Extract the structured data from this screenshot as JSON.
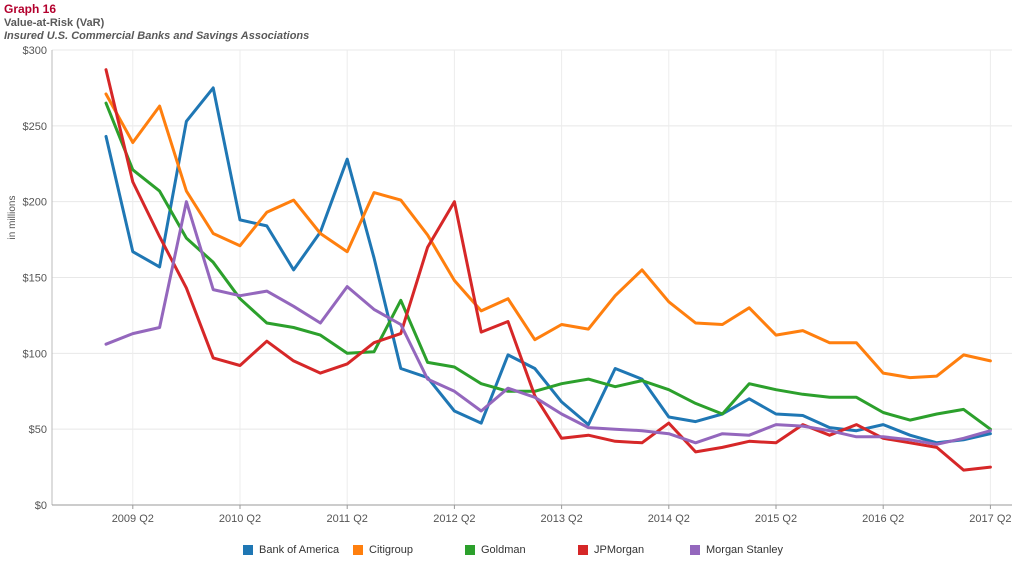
{
  "header": {
    "title": "Graph 16",
    "subtitle": "Value-at-Risk (VaR)",
    "subtitle2": "Insured U.S. Commercial Banks and Savings Associations"
  },
  "chart_data": {
    "type": "line",
    "ylabel": "in millions",
    "ylim": [
      0,
      300
    ],
    "yticks": [
      0,
      50,
      100,
      150,
      200,
      250,
      300
    ],
    "ytick_labels": [
      "$0",
      "$50",
      "$100",
      "$150",
      "$200",
      "$250",
      "$300"
    ],
    "xlabels": [
      "2009 Q2",
      "2010 Q2",
      "2011 Q2",
      "2012 Q2",
      "2013 Q2",
      "2014 Q2",
      "2015 Q2",
      "2016 Q2",
      "2017 Q2"
    ],
    "x": [
      "2009 Q1",
      "2009 Q2",
      "2009 Q3",
      "2009 Q4",
      "2010 Q1",
      "2010 Q2",
      "2010 Q3",
      "2010 Q4",
      "2011 Q1",
      "2011 Q2",
      "2011 Q3",
      "2011 Q4",
      "2012 Q1",
      "2012 Q2",
      "2012 Q3",
      "2012 Q4",
      "2013 Q1",
      "2013 Q2",
      "2013 Q3",
      "2013 Q4",
      "2014 Q1",
      "2014 Q2",
      "2014 Q3",
      "2014 Q4",
      "2015 Q1",
      "2015 Q2",
      "2015 Q3",
      "2015 Q4",
      "2016 Q1",
      "2016 Q2",
      "2016 Q3",
      "2016 Q4",
      "2017 Q1",
      "2017 Q2"
    ],
    "grid": true,
    "legend_position": "bottom",
    "series": [
      {
        "name": "Bank of America",
        "color": "#1f77b4",
        "values": [
          243,
          167,
          157,
          253,
          275,
          188,
          184,
          155,
          180,
          228,
          163,
          90,
          84,
          62,
          54,
          99,
          90,
          68,
          53,
          90,
          83,
          58,
          55,
          60,
          70,
          60,
          59,
          51,
          49,
          53,
          46,
          41,
          43,
          47
        ]
      },
      {
        "name": "Citigroup",
        "color": "#ff7f0e",
        "values": [
          271,
          239,
          263,
          207,
          179,
          171,
          193,
          201,
          179,
          167,
          206,
          201,
          178,
          148,
          128,
          136,
          109,
          119,
          116,
          138,
          155,
          134,
          120,
          119,
          130,
          112,
          115,
          107,
          107,
          87,
          84,
          85,
          99,
          95
        ]
      },
      {
        "name": "Goldman",
        "color": "#2ca02c",
        "values": [
          265,
          221,
          207,
          176,
          160,
          136,
          120,
          117,
          112,
          100,
          101,
          135,
          94,
          91,
          80,
          75,
          75,
          80,
          83,
          78,
          82,
          76,
          67,
          60,
          80,
          76,
          73,
          71,
          71,
          61,
          56,
          60,
          63,
          50
        ]
      },
      {
        "name": "JPMorgan",
        "color": "#d62728",
        "values": [
          287,
          213,
          177,
          143,
          97,
          92,
          108,
          95,
          87,
          93,
          107,
          113,
          170,
          200,
          114,
          121,
          72,
          44,
          46,
          42,
          41,
          54,
          35,
          38,
          42,
          41,
          53,
          46,
          53,
          44,
          41,
          38,
          23,
          25
        ]
      },
      {
        "name": "Morgan Stanley",
        "color": "#9467bd",
        "values": [
          106,
          113,
          117,
          200,
          142,
          138,
          141,
          131,
          120,
          144,
          129,
          119,
          83,
          75,
          62,
          77,
          71,
          60,
          51,
          50,
          49,
          47,
          41,
          47,
          46,
          53,
          52,
          49,
          45,
          45,
          43,
          40,
          44,
          49
        ]
      }
    ]
  }
}
